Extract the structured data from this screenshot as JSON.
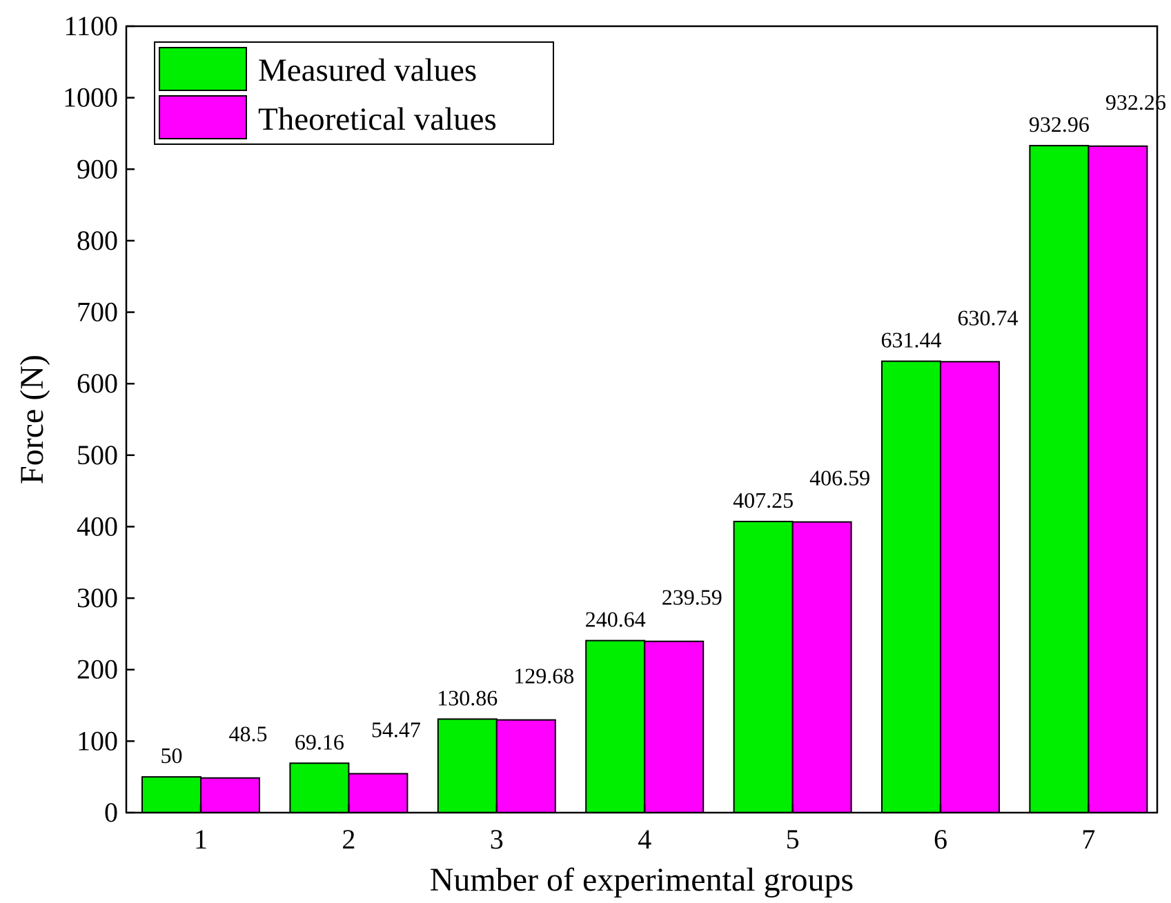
{
  "chart_data": {
    "type": "bar",
    "title": "",
    "xlabel": "Number of experimental groups",
    "ylabel": "Force (N)",
    "categories": [
      "1",
      "2",
      "3",
      "4",
      "5",
      "6",
      "7"
    ],
    "ylim": [
      0,
      1100
    ],
    "yticks": [
      0,
      100,
      200,
      300,
      400,
      500,
      600,
      700,
      800,
      900,
      1000,
      1100
    ],
    "grid": false,
    "legend_position": "top-left",
    "series": [
      {
        "name": "Measured values",
        "color": "#00ee00",
        "values": [
          50,
          69.16,
          130.86,
          240.64,
          407.25,
          631.44,
          932.96
        ],
        "labels": [
          "50",
          "69.16",
          "130.86",
          "240.64",
          "407.25",
          "631.44",
          "932.96"
        ]
      },
      {
        "name": "Theoretical values",
        "color": "#ff00ff",
        "values": [
          48.5,
          54.47,
          129.68,
          239.59,
          406.59,
          630.74,
          932.26
        ],
        "labels": [
          "48.5",
          "54.47",
          "129.68",
          "239.59",
          "406.59",
          "630.74",
          "932.26"
        ]
      }
    ]
  }
}
